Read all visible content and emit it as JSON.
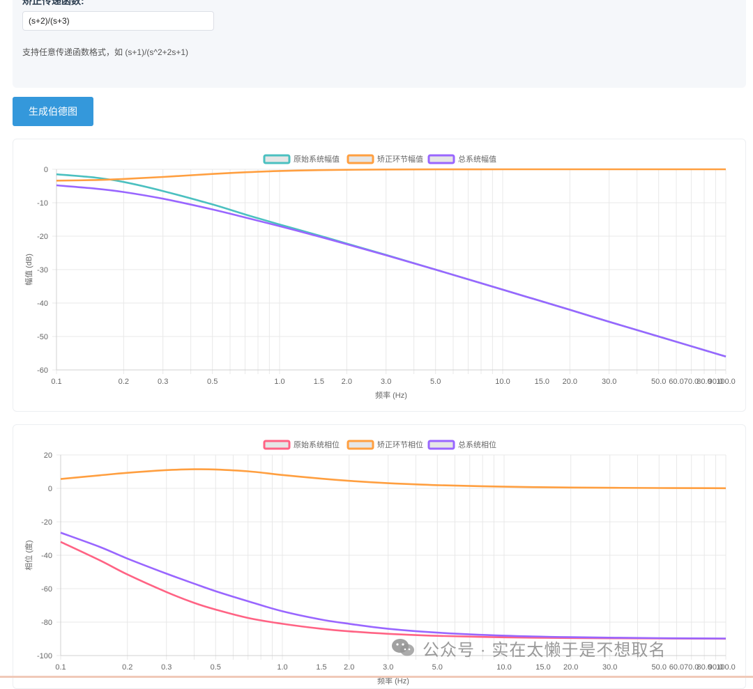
{
  "config": {
    "tf_label": "矫正传递函数:",
    "tf_value": "(s+2)/(s+3)",
    "hint": "支持任意传递函数格式，如 (s+1)/(s^2+2s+1)"
  },
  "generate_button": "生成伯德图",
  "watermark": "公众号 · 实在太懒于是不想取名",
  "colors": {
    "original_mag": "#4bc0c0",
    "correction": "#ff9f40",
    "total": "#9966ff",
    "original_phase": "#ff6384",
    "grid": "#e8e8e8",
    "button": "#3498db"
  },
  "chart_data": [
    {
      "type": "line",
      "title": "",
      "xlabel": "频率 (Hz)",
      "ylabel": "幅值 (dB)",
      "xscale": "log",
      "xlim": [
        0.1,
        100
      ],
      "ylim": [
        -60,
        0
      ],
      "grid": true,
      "legend_position": "top",
      "x_ticks": [
        "0.1",
        "0.2",
        "0.3",
        "0.5",
        "1.0",
        "1.5",
        "2.0",
        "3.0",
        "5.0",
        "10.0",
        "15.0",
        "20.0",
        "30.0",
        "50.0",
        "60.0",
        "70.0",
        "80.0",
        "90.0",
        "100.0"
      ],
      "y_ticks": [
        "0",
        "-10",
        "-20",
        "-30",
        "-40",
        "-50",
        "-60"
      ],
      "x": [
        0.1,
        0.15,
        0.2,
        0.3,
        0.5,
        0.7,
        1.0,
        1.5,
        2.0,
        3.0,
        5.0,
        10.0,
        20.0,
        30.0,
        50.0,
        100.0
      ],
      "series": [
        {
          "name": "原始系统幅值",
          "color_key": "original_mag",
          "values": [
            -1.5,
            -2.5,
            -3.8,
            -6.5,
            -10.5,
            -13.5,
            -16.5,
            -19.8,
            -22.2,
            -25.6,
            -30.0,
            -36.0,
            -42.0,
            -45.6,
            -50.0,
            -56.0
          ]
        },
        {
          "name": "矫正环节幅值",
          "color_key": "correction",
          "values": [
            -3.4,
            -3.2,
            -2.9,
            -2.3,
            -1.4,
            -0.9,
            -0.5,
            -0.25,
            -0.15,
            -0.07,
            -0.03,
            -0.01,
            0.0,
            0.0,
            0.0,
            0.0
          ]
        },
        {
          "name": "总系统幅值",
          "color_key": "total",
          "values": [
            -4.8,
            -5.8,
            -6.8,
            -8.8,
            -12.0,
            -14.4,
            -17.0,
            -20.1,
            -22.4,
            -25.7,
            -30.0,
            -36.0,
            -42.0,
            -45.6,
            -50.0,
            -56.0
          ]
        }
      ]
    },
    {
      "type": "line",
      "title": "",
      "xlabel": "频率 (Hz)",
      "ylabel": "相位 (度)",
      "xscale": "log",
      "xlim": [
        0.1,
        100
      ],
      "ylim": [
        -100,
        20
      ],
      "grid": true,
      "legend_position": "top",
      "x_ticks": [
        "0.1",
        "0.2",
        "0.3",
        "0.5",
        "1.0",
        "1.5",
        "2.0",
        "3.0",
        "5.0",
        "10.0",
        "15.0",
        "20.0",
        "30.0",
        "50.0",
        "60.0",
        "70.0",
        "80.0",
        "90.0",
        "100.0"
      ],
      "y_ticks": [
        "20",
        "0",
        "-20",
        "-40",
        "-60",
        "-80",
        "-100"
      ],
      "x": [
        0.1,
        0.15,
        0.2,
        0.3,
        0.4,
        0.5,
        0.7,
        1.0,
        1.5,
        2.0,
        3.0,
        5.0,
        10.0,
        20.0,
        50.0,
        100.0
      ],
      "series": [
        {
          "name": "原始系统相位",
          "color_key": "original_phase",
          "values": [
            -32.0,
            -43.0,
            -51.5,
            -62.0,
            -68.5,
            -72.5,
            -77.5,
            -81.0,
            -84.0,
            -85.5,
            -87.0,
            -88.2,
            -89.1,
            -89.5,
            -89.8,
            -89.9
          ]
        },
        {
          "name": "矫正环节相位",
          "color_key": "correction",
          "values": [
            5.6,
            7.8,
            9.3,
            10.9,
            11.4,
            11.3,
            10.2,
            8.0,
            5.8,
            4.5,
            3.1,
            1.9,
            1.0,
            0.5,
            0.2,
            0.1
          ]
        },
        {
          "name": "总系统相位",
          "color_key": "total",
          "values": [
            -26.5,
            -35.0,
            -42.0,
            -51.0,
            -57.0,
            -61.5,
            -67.5,
            -73.5,
            -78.5,
            -81.0,
            -84.0,
            -86.3,
            -88.1,
            -89.0,
            -89.6,
            -89.8
          ]
        }
      ]
    }
  ]
}
